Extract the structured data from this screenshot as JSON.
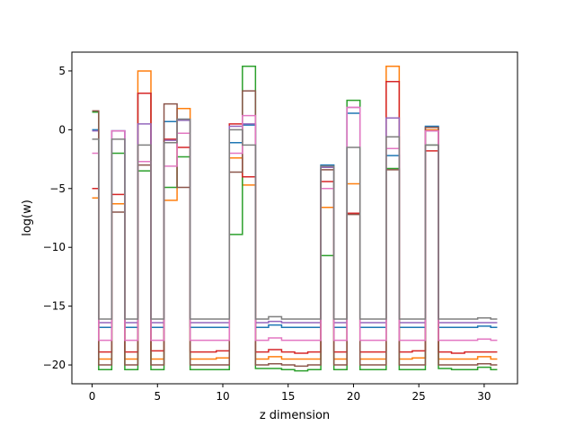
{
  "chart_data": {
    "type": "line",
    "step": true,
    "xlabel": "z dimension",
    "ylabel": "log(w)",
    "xlim": [
      -1.55,
      32.55
    ],
    "ylim": [
      -21.6,
      6.6
    ],
    "xticks": [
      0,
      5,
      10,
      15,
      20,
      25,
      30
    ],
    "yticks": [
      5,
      0,
      -5,
      -10,
      -15,
      -20
    ],
    "ytick_labels": [
      "5",
      "0",
      "−5",
      "−10",
      "−15",
      "−20"
    ],
    "grid": false,
    "x": [
      0,
      1,
      2,
      3,
      4,
      5,
      6,
      7,
      8,
      9,
      10,
      11,
      12,
      13,
      14,
      15,
      16,
      17,
      18,
      19,
      20,
      21,
      22,
      23,
      24,
      25,
      26,
      27,
      28,
      29,
      30,
      31
    ],
    "series": [
      {
        "color": "#1f77b4",
        "values": [
          0.0,
          -16.8,
          -0.1,
          -16.8,
          3.1,
          -16.8,
          0.7,
          0.9,
          -16.8,
          -16.8,
          -16.8,
          -1.1,
          0.4,
          -16.8,
          -16.6,
          -16.8,
          -16.8,
          -16.8,
          -3.0,
          -16.8,
          1.4,
          -16.8,
          -16.8,
          -2.2,
          -16.8,
          -16.8,
          0.3,
          -16.8,
          -16.8,
          -16.8,
          -16.7,
          -16.8
        ]
      },
      {
        "color": "#ff7f0e",
        "values": [
          -5.8,
          -19.5,
          -6.3,
          -19.5,
          5.0,
          -19.5,
          -6.0,
          1.8,
          -19.5,
          -19.5,
          -19.4,
          -2.4,
          -4.7,
          -19.5,
          -19.3,
          -19.5,
          -19.5,
          -19.5,
          -6.6,
          -19.5,
          -4.6,
          -19.5,
          -19.5,
          5.4,
          -19.5,
          -19.4,
          0.0,
          -19.5,
          -19.5,
          -19.5,
          -19.3,
          -19.5
        ]
      },
      {
        "color": "#2ca02c",
        "values": [
          1.5,
          -20.4,
          -2.0,
          -20.4,
          -3.5,
          -20.4,
          -4.9,
          -2.3,
          -20.4,
          -20.4,
          -20.4,
          -8.9,
          5.4,
          -20.3,
          -20.3,
          -20.4,
          -20.5,
          -20.4,
          -10.7,
          -20.4,
          2.5,
          -20.4,
          -20.4,
          -3.3,
          -20.4,
          -20.4,
          -1.3,
          -20.3,
          -20.4,
          -20.4,
          -20.2,
          -20.4
        ]
      },
      {
        "color": "#d62728",
        "values": [
          -5.0,
          -18.9,
          -5.5,
          -18.9,
          3.1,
          -18.8,
          -0.8,
          -1.5,
          -18.9,
          -18.9,
          -18.8,
          0.5,
          -4.0,
          -18.9,
          -18.7,
          -18.9,
          -19.0,
          -18.9,
          -4.4,
          -18.9,
          -7.1,
          -18.9,
          -18.9,
          4.1,
          -18.9,
          -18.8,
          -1.8,
          -18.9,
          -19.0,
          -18.9,
          -18.9,
          -18.9
        ]
      },
      {
        "color": "#9467bd",
        "values": [
          -0.1,
          -16.4,
          -0.1,
          -16.4,
          0.5,
          -16.4,
          -0.9,
          0.8,
          -16.4,
          -16.4,
          -16.4,
          0.3,
          0.5,
          -16.4,
          -16.3,
          -16.4,
          -16.4,
          -16.4,
          -3.2,
          -16.4,
          1.9,
          -16.4,
          -16.4,
          1.0,
          -16.4,
          -16.4,
          -0.1,
          -16.4,
          -16.4,
          -16.4,
          -16.4,
          -16.4
        ]
      },
      {
        "color": "#8c564b",
        "values": [
          1.6,
          -20.0,
          -7.0,
          -20.0,
          -3.0,
          -20.0,
          2.2,
          -4.9,
          -20.0,
          -20.0,
          -20.0,
          -3.6,
          3.3,
          -20.0,
          -19.9,
          -20.0,
          -20.1,
          -20.0,
          -3.4,
          -20.0,
          -7.2,
          -20.0,
          -20.0,
          -3.4,
          -20.0,
          -20.0,
          0.2,
          -20.0,
          -20.0,
          -20.0,
          -19.9,
          -20.0
        ]
      },
      {
        "color": "#e377c2",
        "values": [
          -2.0,
          -17.9,
          -0.1,
          -17.9,
          -2.7,
          -17.9,
          -3.1,
          -0.3,
          -17.9,
          -17.9,
          -17.9,
          -2.0,
          1.2,
          -17.9,
          -17.7,
          -17.9,
          -17.9,
          -17.9,
          -5.0,
          -17.9,
          1.9,
          -17.9,
          -17.9,
          -1.6,
          -17.9,
          -17.9,
          -0.1,
          -17.9,
          -17.9,
          -17.9,
          -17.8,
          -17.9
        ]
      },
      {
        "color": "#7f7f7f",
        "values": [
          -0.8,
          -16.1,
          -0.8,
          -16.1,
          -1.3,
          -16.1,
          -1.1,
          0.9,
          -16.1,
          -16.1,
          -16.1,
          0.0,
          -1.3,
          -16.1,
          -15.9,
          -16.1,
          -16.1,
          -16.1,
          -3.1,
          -16.1,
          -1.5,
          -16.1,
          -16.1,
          -0.6,
          -16.1,
          -16.1,
          -1.3,
          -16.1,
          -16.1,
          -16.1,
          -16.0,
          -16.1
        ]
      }
    ]
  }
}
